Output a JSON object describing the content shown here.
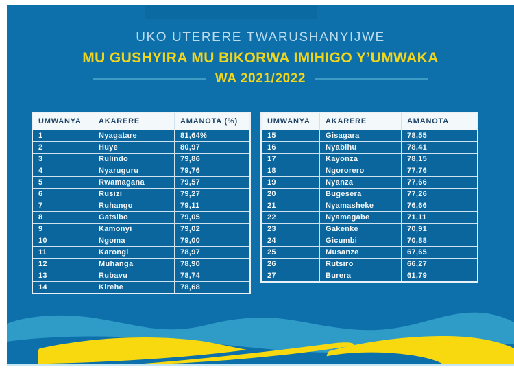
{
  "header": {
    "line1": "UKO UTERERE TWARUSHANYIJWE",
    "line2": "MU GUSHYIRA MU BIKORWA IMIHIGO Y’UMWAKA",
    "line3": "WA 2021/2022"
  },
  "colors": {
    "background_blue": "#0d70ab",
    "table_row_blue": "#0c669e",
    "header_cell_bg": "#f3f8fb",
    "header_cell_text": "#1d4366",
    "title_pale_blue": "#bcdcee",
    "title_yellow": "#f0d51d",
    "dash_teal": "#3e9bc4",
    "wave_teal": "#2f9cc8",
    "wave_yellow": "#f8d90f",
    "bottom_strip": "#c6e6f2"
  },
  "tables": [
    {
      "columns": [
        "UMWANYA",
        "AKARERE",
        "AMANOTA (%)"
      ],
      "rows": [
        [
          "1",
          "Nyagatare",
          "81,64%"
        ],
        [
          "2",
          "Huye",
          "80,97"
        ],
        [
          "3",
          "Rulindo",
          "79,86"
        ],
        [
          "4",
          "Nyaruguru",
          "79,76"
        ],
        [
          "5",
          "Rwamagana",
          "79,57"
        ],
        [
          "6",
          "Rusizi",
          "79,27"
        ],
        [
          "7",
          "Ruhango",
          "79,11"
        ],
        [
          "8",
          "Gatsibo",
          "79,05"
        ],
        [
          "9",
          "Kamonyi",
          "79,02"
        ],
        [
          "10",
          "Ngoma",
          "79,00"
        ],
        [
          "11",
          "Karongi",
          "78,97"
        ],
        [
          "12",
          "Muhanga",
          "78,90"
        ],
        [
          "13",
          "Rubavu",
          "78,74"
        ],
        [
          "14",
          "Kirehe",
          "78,68"
        ]
      ]
    },
    {
      "columns": [
        "UMWANYA",
        "AKARERE",
        "AMANOTA"
      ],
      "rows": [
        [
          "15",
          "Gisagara",
          "78,55"
        ],
        [
          "16",
          "Nyabihu",
          "78,41"
        ],
        [
          "17",
          "Kayonza",
          "78,15"
        ],
        [
          "18",
          "Ngororero",
          "77,76"
        ],
        [
          "19",
          "Nyanza",
          "77,66"
        ],
        [
          "20",
          "Bugesera",
          "77,26"
        ],
        [
          "21",
          "Nyamasheke",
          "76,66"
        ],
        [
          "22",
          "Nyamagabe",
          "71,11"
        ],
        [
          "23",
          "Gakenke",
          "70,91"
        ],
        [
          "24",
          "Gicumbi",
          "70,88"
        ],
        [
          "25",
          "Musanze",
          "67,65"
        ],
        [
          "26",
          "Rutsiro",
          "66,27"
        ],
        [
          "27",
          "Burera",
          "61,79"
        ]
      ]
    }
  ]
}
